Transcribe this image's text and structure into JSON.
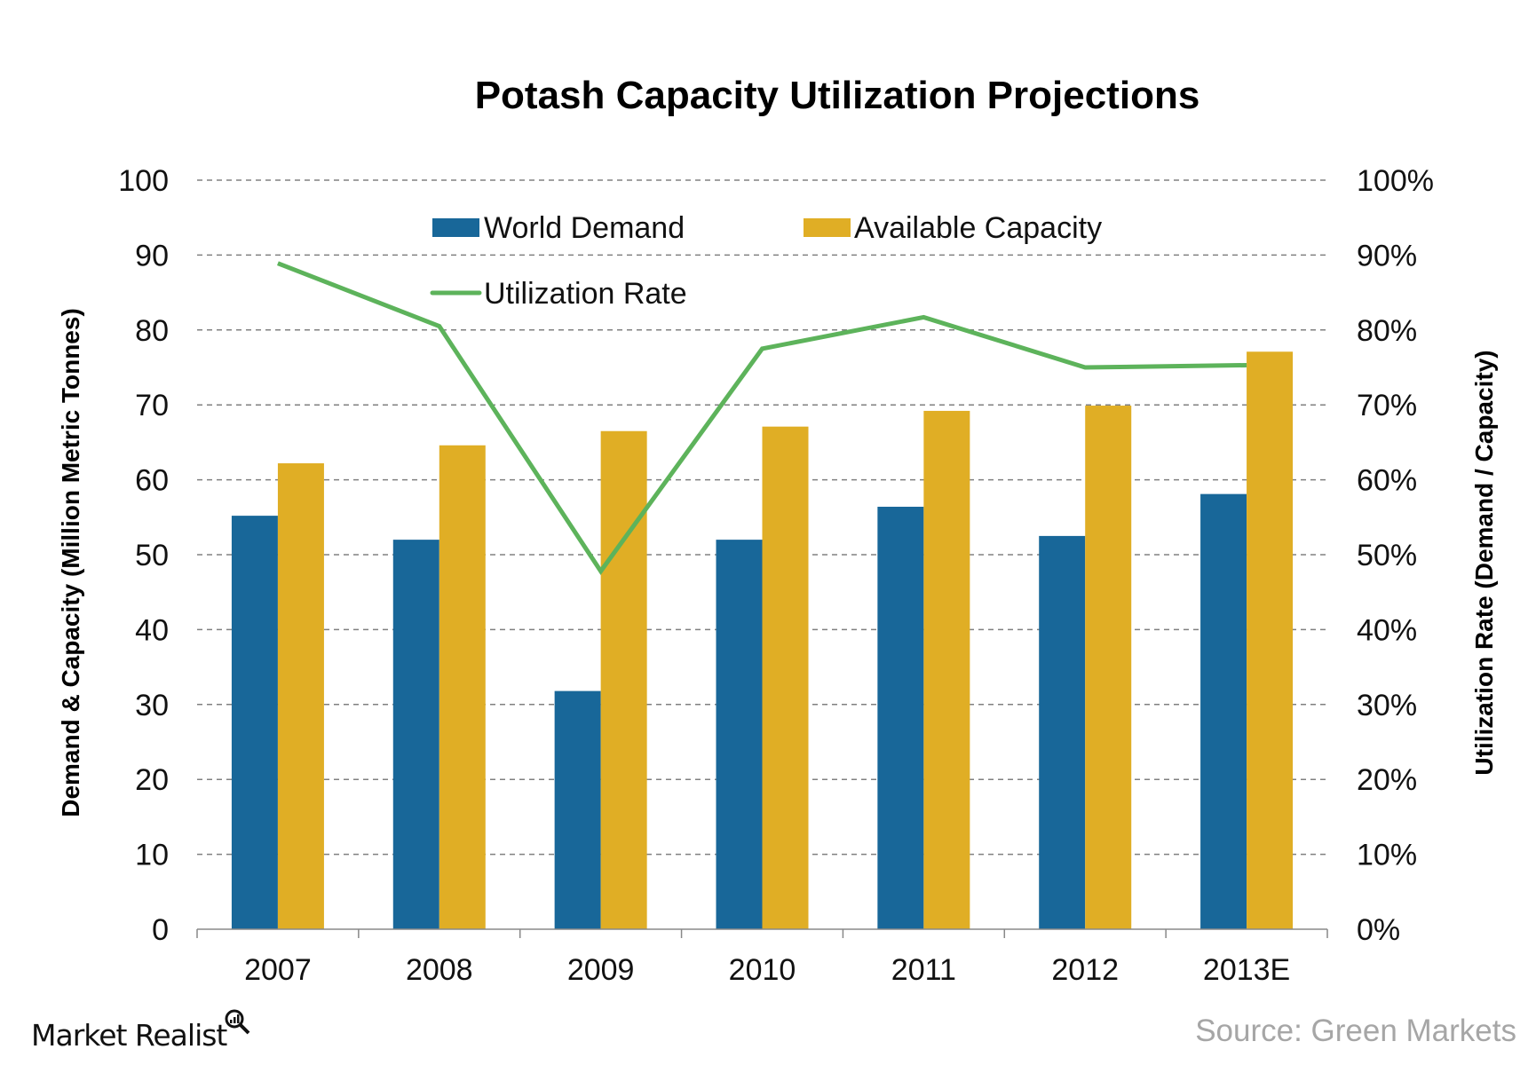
{
  "chart_data": {
    "type": "bar",
    "title": "Potash Capacity Utilization Projections",
    "categories": [
      "2007",
      "2008",
      "2009",
      "2010",
      "2011",
      "2012",
      "2013E"
    ],
    "series": [
      {
        "name": "World Demand",
        "type": "bar",
        "axis": "left",
        "color": "#186799",
        "values": [
          55.2,
          52.0,
          31.8,
          52.0,
          56.4,
          52.5,
          58.1
        ]
      },
      {
        "name": "Available Capacity",
        "type": "bar",
        "axis": "left",
        "color": "#e0ae25",
        "values": [
          62.2,
          64.6,
          66.5,
          67.1,
          69.2,
          69.9,
          77.1
        ]
      },
      {
        "name": "Utilization Rate",
        "type": "line",
        "axis": "right",
        "color": "#5db35b",
        "values": [
          88.9,
          80.5,
          47.8,
          77.5,
          81.7,
          75.0,
          75.3
        ]
      }
    ],
    "ylabel": "Demand & Capacity (Million Metric Tonnes)",
    "ylabel_right": "Utilization Rate (Demand / Capacity)",
    "ylim": [
      0,
      100
    ],
    "ylim_right": [
      0,
      100
    ],
    "yticks": [
      "0",
      "10",
      "20",
      "30",
      "40",
      "50",
      "60",
      "70",
      "80",
      "90",
      "100"
    ],
    "yticks_right": [
      "0%",
      "10%",
      "20%",
      "30%",
      "40%",
      "50%",
      "60%",
      "70%",
      "80%",
      "90%",
      "100%"
    ],
    "grid": true,
    "legend_position": "top"
  },
  "source": "Source: Green Markets",
  "logo": "Market Realist"
}
